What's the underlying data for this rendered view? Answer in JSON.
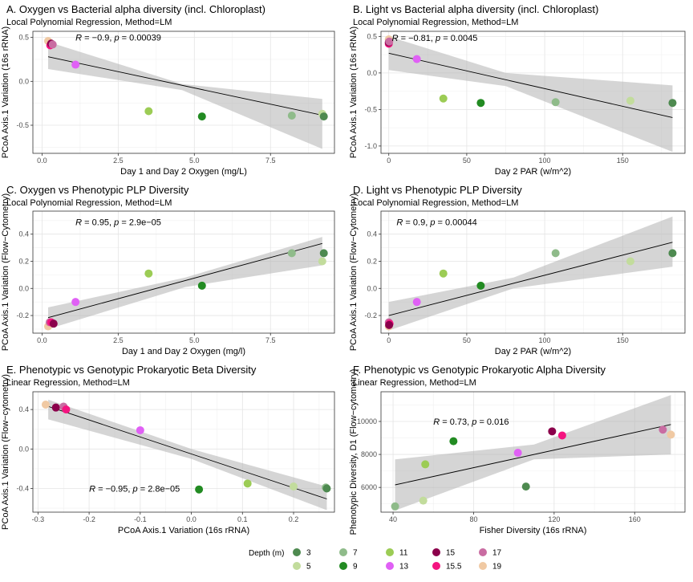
{
  "palette": {
    "3": "#4e8a50",
    "5": "#c2dc9c",
    "7": "#8fbb8a",
    "9": "#228b22",
    "11": "#9ccc55",
    "13": "#e060f5",
    "15": "#8b004b",
    "15.5": "#f41480",
    "17": "#c96ca2",
    "19": "#f0c9a3"
  },
  "legend": {
    "title": "Depth (m)",
    "items": [
      {
        "label": "3",
        "color": "#4e8a50"
      },
      {
        "label": "5",
        "color": "#c2dc9c"
      },
      {
        "label": "7",
        "color": "#8fbb8a"
      },
      {
        "label": "9",
        "color": "#228b22"
      },
      {
        "label": "11",
        "color": "#9ccc55"
      },
      {
        "label": "13",
        "color": "#e060f5"
      },
      {
        "label": "15",
        "color": "#8b004b"
      },
      {
        "label": "15.5",
        "color": "#f41480"
      },
      {
        "label": "17",
        "color": "#c96ca2"
      },
      {
        "label": "19",
        "color": "#f0c9a3"
      }
    ]
  },
  "chart_data": [
    {
      "id": "A",
      "type": "scatter",
      "title": "A. Oxygen vs Bacterial alpha diversity (incl. Chloroplast)",
      "subtitle": "Local Polynomial Regression, Method=LM",
      "xlabel": "Day 1 and Day 2 Oxygen (mg/L)",
      "ylabel": "PCoA Axis.1 Variation (16s rRNA)",
      "xlim": [
        -0.3,
        9.6
      ],
      "ylim": [
        -0.82,
        0.57
      ],
      "xticks": [
        0.0,
        2.5,
        5.0,
        7.5
      ],
      "xtick_labels": [
        "0.0",
        "2.5",
        "5.0",
        "7.5"
      ],
      "yticks": [
        -0.5,
        0.0,
        0.5
      ],
      "ytick_labels": [
        "-0.5",
        "0.0",
        "0.5"
      ],
      "annotation": {
        "R": "−0.9",
        "p": "0.00039",
        "x": 1.1,
        "y": 0.5
      },
      "fit": {
        "x0": 0.2,
        "x1": 9.2,
        "slope": -0.074,
        "intercept": 0.295,
        "band": [
          [
            0.2,
            0.14,
            0.45
          ],
          [
            4.6,
            -0.1,
            -0.03
          ],
          [
            9.2,
            -0.77,
            -0.2
          ]
        ]
      },
      "points": [
        {
          "x": 0.2,
          "y": 0.46,
          "depth": "19"
        },
        {
          "x": 0.27,
          "y": 0.41,
          "depth": "15.5"
        },
        {
          "x": 0.3,
          "y": 0.43,
          "depth": "15"
        },
        {
          "x": 0.35,
          "y": 0.42,
          "depth": "17"
        },
        {
          "x": 1.1,
          "y": 0.19,
          "depth": "13"
        },
        {
          "x": 3.5,
          "y": -0.34,
          "depth": "11"
        },
        {
          "x": 5.25,
          "y": -0.4,
          "depth": "9"
        },
        {
          "x": 8.2,
          "y": -0.39,
          "depth": "7"
        },
        {
          "x": 9.2,
          "y": -0.37,
          "depth": "5"
        },
        {
          "x": 9.25,
          "y": -0.4,
          "depth": "3"
        }
      ]
    },
    {
      "id": "B",
      "type": "scatter",
      "title": "B. Light vs Bacterial alpha diversity (incl. Chloroplast)",
      "subtitle": "Local Polynomial Regression, Method=LM",
      "xlabel": "Day 2 PAR (w/m^2)",
      "ylabel": "PCoA Axis.1 Variation (16s rRNA)",
      "xlim": [
        -5,
        190
      ],
      "ylim": [
        -1.1,
        0.57
      ],
      "xticks": [
        0,
        50,
        100,
        150
      ],
      "xtick_labels": [
        "0",
        "50",
        "100",
        "150"
      ],
      "yticks": [
        -1.0,
        -0.5,
        0.0,
        0.5
      ],
      "ytick_labels": [
        "-1.0",
        "-0.5",
        "0.0",
        "0.5"
      ],
      "annotation": {
        "R": "−0.81",
        "p": "0.0045",
        "x": 2,
        "y": 0.48
      },
      "fit": {
        "x0": 0,
        "x1": 182,
        "slope": -0.00484,
        "intercept": 0.27,
        "band": [
          [
            0,
            0.04,
            0.5
          ],
          [
            75,
            -0.18,
            0.0
          ],
          [
            182,
            -1.08,
            -0.17
          ]
        ]
      },
      "points": [
        {
          "x": 0,
          "y": 0.46,
          "depth": "19"
        },
        {
          "x": 0,
          "y": 0.4,
          "depth": "15.5"
        },
        {
          "x": 0,
          "y": 0.42,
          "depth": "15"
        },
        {
          "x": 0.3,
          "y": 0.43,
          "depth": "17"
        },
        {
          "x": 18,
          "y": 0.19,
          "depth": "13"
        },
        {
          "x": 35,
          "y": -0.35,
          "depth": "11"
        },
        {
          "x": 59,
          "y": -0.41,
          "depth": "9"
        },
        {
          "x": 107,
          "y": -0.4,
          "depth": "7"
        },
        {
          "x": 155,
          "y": -0.38,
          "depth": "5"
        },
        {
          "x": 182,
          "y": -0.41,
          "depth": "3"
        }
      ]
    },
    {
      "id": "C",
      "type": "scatter",
      "title": "C. Oxygen vs Phenotypic PLP Diversity",
      "subtitle": "Local Polynomial Regression, Method=LM",
      "xlabel": "Day 1 and Day 2 Oxygen (mg/l)",
      "ylabel": "PCoA Axis.1 Variation (Flow−Cytometry)",
      "xlim": [
        -0.3,
        9.6
      ],
      "ylim": [
        -0.33,
        0.57
      ],
      "xticks": [
        0.0,
        2.5,
        5.0,
        7.5
      ],
      "xtick_labels": [
        "0.0",
        "2.5",
        "5.0",
        "7.5"
      ],
      "yticks": [
        -0.2,
        0.0,
        0.2,
        0.4
      ],
      "ytick_labels": [
        "-0.2",
        "0.0",
        "0.2",
        "0.4"
      ],
      "annotation": {
        "R": "0.95",
        "p": "2.9e−05",
        "x": 1.1,
        "y": 0.49
      },
      "fit": {
        "x0": 0.2,
        "x1": 9.2,
        "slope": 0.0608,
        "intercept": -0.228,
        "band": [
          [
            0.2,
            -0.3,
            -0.14
          ],
          [
            4.7,
            0.01,
            0.08
          ],
          [
            9.2,
            0.17,
            0.38
          ]
        ]
      },
      "points": [
        {
          "x": 0.2,
          "y": -0.28,
          "depth": "19"
        },
        {
          "x": 0.25,
          "y": -0.25,
          "depth": "17"
        },
        {
          "x": 0.3,
          "y": -0.25,
          "depth": "15.5"
        },
        {
          "x": 0.38,
          "y": -0.26,
          "depth": "15"
        },
        {
          "x": 1.1,
          "y": -0.1,
          "depth": "13"
        },
        {
          "x": 3.5,
          "y": 0.11,
          "depth": "11"
        },
        {
          "x": 5.25,
          "y": 0.02,
          "depth": "9"
        },
        {
          "x": 8.2,
          "y": 0.26,
          "depth": "7"
        },
        {
          "x": 9.2,
          "y": 0.2,
          "depth": "5"
        },
        {
          "x": 9.25,
          "y": 0.26,
          "depth": "3"
        }
      ]
    },
    {
      "id": "D",
      "type": "scatter",
      "title": "D. Light vs Phenotypic PLP Diversity",
      "subtitle": "Local Polynomial Regression, Method=LM",
      "xlabel": "Day 2 PAR (w/m^2)",
      "ylabel": "PCoA Axis.1 Variation (Flow−Cytometry)",
      "xlim": [
        -5,
        190
      ],
      "ylim": [
        -0.33,
        0.57
      ],
      "xticks": [
        0,
        50,
        100,
        150
      ],
      "xtick_labels": [
        "0",
        "50",
        "100",
        "150"
      ],
      "yticks": [
        -0.2,
        0.0,
        0.2,
        0.4
      ],
      "ytick_labels": [
        "-0.2",
        "0.0",
        "0.2",
        "0.4"
      ],
      "annotation": {
        "R": "0.9",
        "p": "0.00044",
        "x": 5,
        "y": 0.49
      },
      "fit": {
        "x0": 0,
        "x1": 182,
        "slope": 0.00297,
        "intercept": -0.2,
        "band": [
          [
            0,
            -0.31,
            -0.1
          ],
          [
            80,
            0.0,
            0.08
          ],
          [
            182,
            0.16,
            0.53
          ]
        ]
      },
      "points": [
        {
          "x": 0,
          "y": -0.28,
          "depth": "19"
        },
        {
          "x": 0,
          "y": -0.25,
          "depth": "17"
        },
        {
          "x": 0.5,
          "y": -0.26,
          "depth": "15.5"
        },
        {
          "x": 0.2,
          "y": -0.27,
          "depth": "15"
        },
        {
          "x": 18,
          "y": -0.1,
          "depth": "13"
        },
        {
          "x": 35,
          "y": 0.11,
          "depth": "11"
        },
        {
          "x": 59,
          "y": 0.02,
          "depth": "9"
        },
        {
          "x": 107,
          "y": 0.26,
          "depth": "7"
        },
        {
          "x": 155,
          "y": 0.2,
          "depth": "5"
        },
        {
          "x": 182,
          "y": 0.26,
          "depth": "3"
        }
      ]
    },
    {
      "id": "E",
      "type": "scatter",
      "title": "E. Phenotypic vs Genotypic Prokaryotic Beta Diversity",
      "subtitle": "Linear Regression, Method=LM",
      "xlabel": "PCoA Axis.1 Variation (16s rRNA)",
      "ylabel": "PCoA Axis.1 Variation (Flow−cytometry)",
      "xlim": [
        -0.31,
        0.28
      ],
      "ylim": [
        -0.64,
        0.58
      ],
      "xticks": [
        -0.3,
        -0.2,
        -0.1,
        0.0,
        0.1,
        0.2
      ],
      "xtick_labels": [
        "-0.3",
        "-0.2",
        "-0.1",
        "0.0",
        "0.1",
        "0.2"
      ],
      "yticks": [
        -0.4,
        0.0,
        0.4
      ],
      "ytick_labels": [
        "-0.4",
        "0.0",
        "0.4"
      ],
      "annotation": {
        "R": "−0.95",
        "p": "2.8e−05",
        "x": -0.2,
        "y": -0.4
      },
      "fit": {
        "x0": -0.28,
        "x1": 0.265,
        "slope": -1.72,
        "intercept": -0.05,
        "band": [
          [
            -0.28,
            0.3,
            0.5
          ],
          [
            0.0,
            -0.1,
            0.0
          ],
          [
            0.265,
            -0.62,
            -0.38
          ]
        ]
      },
      "points": [
        {
          "x": -0.285,
          "y": 0.45,
          "depth": "19"
        },
        {
          "x": -0.265,
          "y": 0.42,
          "depth": "15"
        },
        {
          "x": -0.25,
          "y": 0.43,
          "depth": "17"
        },
        {
          "x": -0.245,
          "y": 0.4,
          "depth": "15.5"
        },
        {
          "x": -0.1,
          "y": 0.19,
          "depth": "13"
        },
        {
          "x": 0.015,
          "y": -0.41,
          "depth": "9"
        },
        {
          "x": 0.11,
          "y": -0.35,
          "depth": "11"
        },
        {
          "x": 0.2,
          "y": -0.38,
          "depth": "5"
        },
        {
          "x": 0.263,
          "y": -0.39,
          "depth": "7"
        },
        {
          "x": 0.265,
          "y": -0.4,
          "depth": "3"
        }
      ]
    },
    {
      "id": "F",
      "type": "scatter",
      "title": "F. Phenotypic vs Genotypic Prokaryotic Alpha Diversity",
      "subtitle": "Linear Regression, Method=LM",
      "xlabel": "Fisher Diversity (16s rRNA)",
      "ylabel": "Phenotypic Diversity, D1 (Flow−cytometry)",
      "xlim": [
        34,
        185
      ],
      "ylim": [
        4500,
        11800
      ],
      "xticks": [
        40,
        80,
        120,
        160
      ],
      "xtick_labels": [
        "40",
        "80",
        "120",
        "160"
      ],
      "yticks": [
        6000,
        8000,
        10000
      ],
      "ytick_labels": [
        "6000",
        "8000",
        "10000"
      ],
      "annotation": {
        "R": "0.73",
        "p": "0.016",
        "x": 60,
        "y": 10000
      },
      "fit": {
        "x0": 41,
        "x1": 178,
        "slope": 26.7,
        "intercept": 5060,
        "band": [
          [
            41,
            4600,
            7700
          ],
          [
            110,
            7700,
            8600
          ],
          [
            178,
            8000,
            11600
          ]
        ]
      },
      "points": [
        {
          "x": 41,
          "y": 4850,
          "depth": "7"
        },
        {
          "x": 55,
          "y": 5200,
          "depth": "5"
        },
        {
          "x": 56,
          "y": 7400,
          "depth": "11"
        },
        {
          "x": 70,
          "y": 8800,
          "depth": "9"
        },
        {
          "x": 102,
          "y": 8100,
          "depth": "13"
        },
        {
          "x": 106,
          "y": 6050,
          "depth": "3"
        },
        {
          "x": 119,
          "y": 9400,
          "depth": "15"
        },
        {
          "x": 124,
          "y": 9150,
          "depth": "15.5"
        },
        {
          "x": 174,
          "y": 9500,
          "depth": "17"
        },
        {
          "x": 178,
          "y": 9200,
          "depth": "19"
        }
      ]
    }
  ]
}
